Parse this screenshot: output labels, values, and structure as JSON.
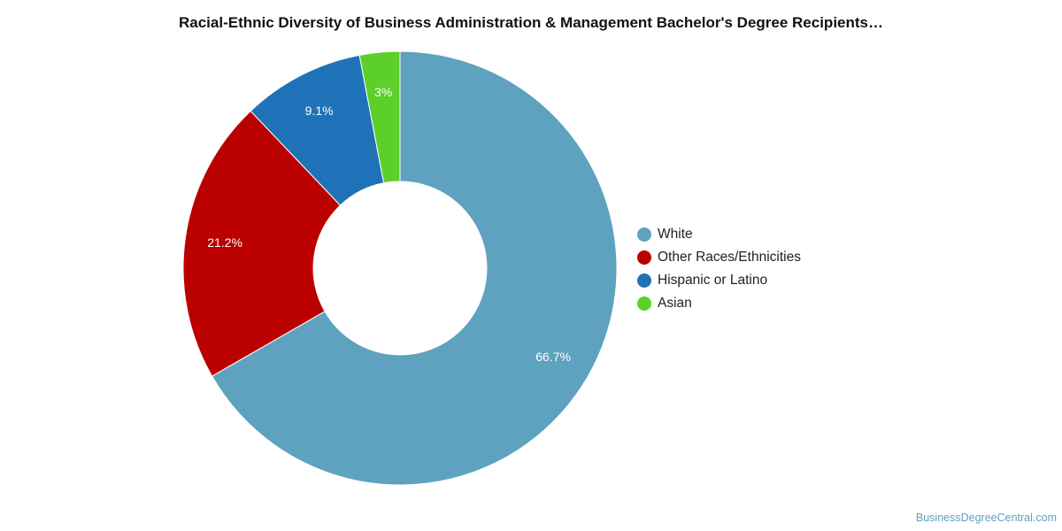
{
  "chart_data": {
    "type": "pie",
    "title": "Racial-Ethnic Diversity of Business Administration & Management Bachelor's Degree Recipients…",
    "donut": true,
    "legend_position": "right",
    "slices": [
      {
        "name": "White",
        "value": 66.7,
        "label": "66.7%",
        "color": "#5ea2bf"
      },
      {
        "name": "Other Races/Ethnicities",
        "value": 21.2,
        "label": "21.2%",
        "color": "#bb0000"
      },
      {
        "name": "Hispanic or Latino",
        "value": 9.1,
        "label": "9.1%",
        "color": "#1f72b8"
      },
      {
        "name": "Asian",
        "value": 3,
        "label": "3%",
        "color": "#5ccf2a"
      }
    ]
  },
  "footer": {
    "credit": "BusinessDegreeCentral.com"
  }
}
